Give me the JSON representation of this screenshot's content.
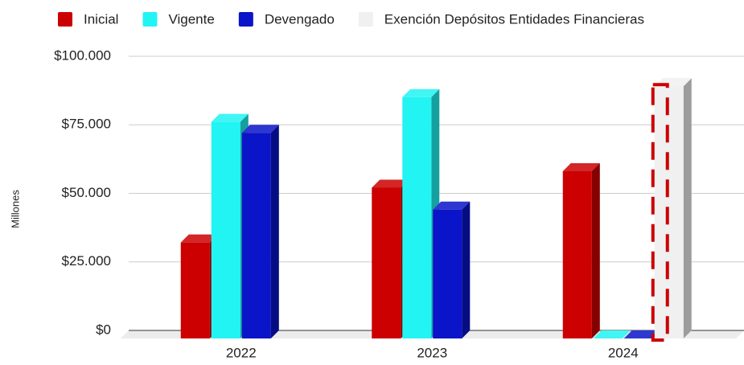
{
  "chart_data": {
    "type": "bar3d",
    "y_axis_label": "Millones",
    "categories": [
      "2022",
      "2023",
      "2024"
    ],
    "series": [
      {
        "name": "Inicial",
        "color": "#cc0000",
        "values": [
          35000,
          55000,
          61000
        ]
      },
      {
        "name": "Vigente",
        "color": "#22f4f4",
        "values": [
          79000,
          88000,
          0
        ]
      },
      {
        "name": "Devengado",
        "color": "#0a14c8",
        "values": [
          75000,
          47000,
          0
        ]
      },
      {
        "name": "Exención Depósitos Entidades Financieras",
        "color": "#f0f0f0",
        "border_color": "#cc0000",
        "values": [
          null,
          null,
          92000
        ]
      }
    ],
    "ylim": [
      0,
      100000
    ],
    "yticks": [
      {
        "value": 0,
        "label": "$0"
      },
      {
        "value": 25000,
        "label": "$25.000"
      },
      {
        "value": 50000,
        "label": "$50.000"
      },
      {
        "value": 75000,
        "label": "$75.000"
      },
      {
        "value": 100000,
        "label": "$100.000"
      }
    ],
    "grid": true,
    "legend": "top"
  }
}
